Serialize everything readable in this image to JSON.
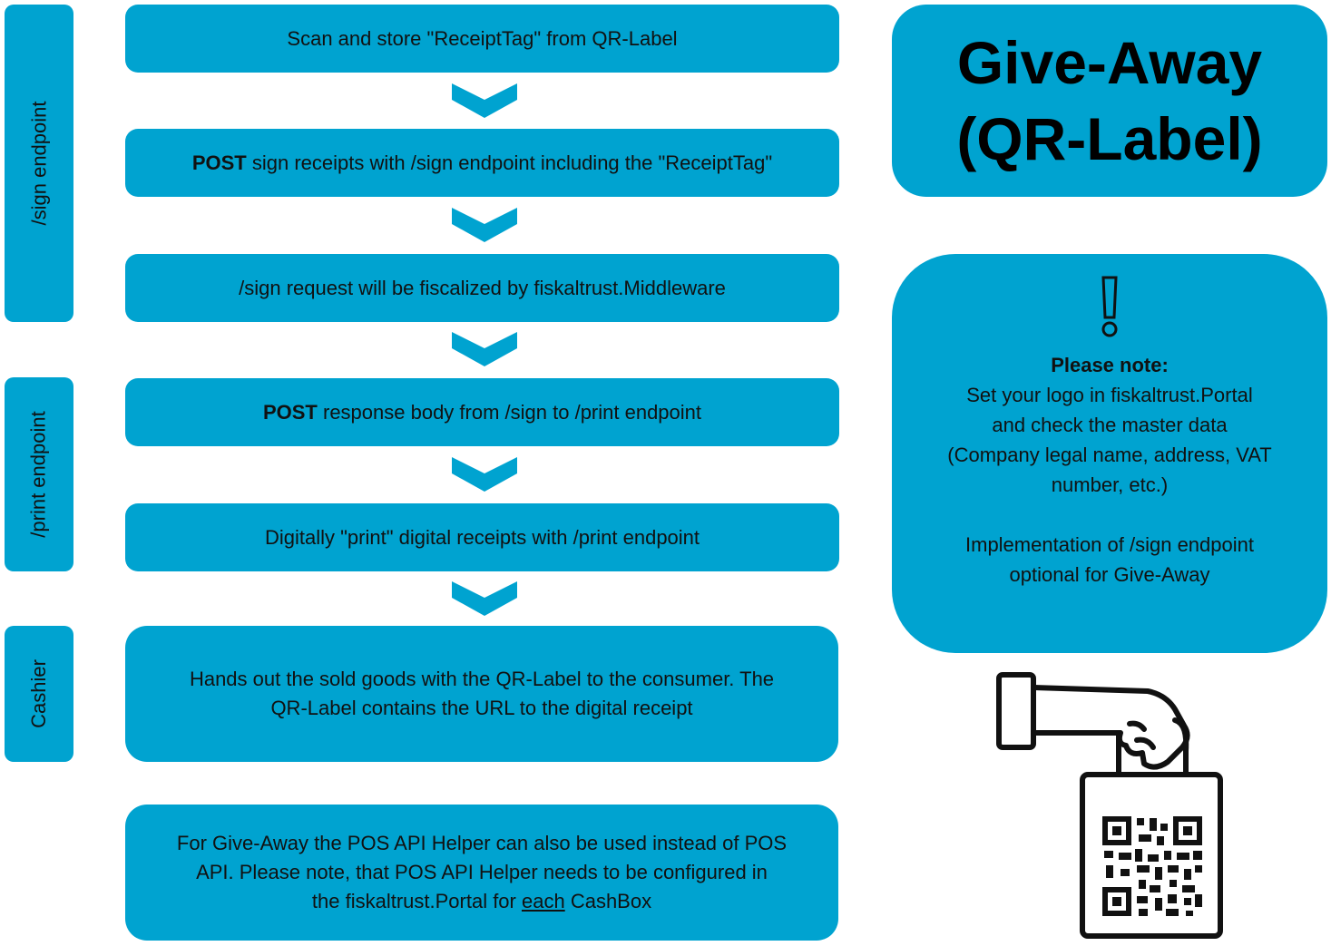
{
  "colors": {
    "accent": "#00a3d0",
    "text": "#111111"
  },
  "side_labels": {
    "sign": "/sign endpoint",
    "print": "/print endpoint",
    "cashier": "Cashier"
  },
  "steps": {
    "s1": {
      "text": "Scan and store \"ReceiptTag\" from QR-Label"
    },
    "s2": {
      "bold": "POST",
      "text": " sign receipts with /sign endpoint including the \"ReceiptTag\""
    },
    "s3": {
      "text": "/sign request will be fiscalized by fiskaltrust.Middleware"
    },
    "s4": {
      "bold": "POST",
      "text": " response body from /sign to /print endpoint"
    },
    "s5": {
      "text": "Digitally \"print\" digital receipts with /print endpoint"
    },
    "s6": {
      "line1": "Hands out the sold goods with the QR-Label to the consumer. The",
      "line2": "QR-Label contains the URL to the digital receipt"
    },
    "s7": {
      "line1": "For Give-Away the POS API Helper can also be used instead of POS",
      "line2": "API. Please note, that POS API Helper needs to be configured in",
      "line3_pre": "the fiskaltrust.Portal for ",
      "line3_u": "each",
      "line3_post": " CashBox"
    }
  },
  "title": {
    "line1": "Give-Away",
    "line2": "(QR-Label)"
  },
  "note": {
    "icon": "exclamation-icon",
    "heading": "Please note:",
    "lines": [
      "Set your logo in fiskaltrust.Portal",
      "and check the master data",
      "(Company legal name, address, VAT",
      "number, etc.)"
    ],
    "lines2": [
      "Implementation of /sign endpoint",
      "optional for Give-Away"
    ]
  },
  "illustration": {
    "icon": "hand-holding-qr-bag-icon"
  }
}
